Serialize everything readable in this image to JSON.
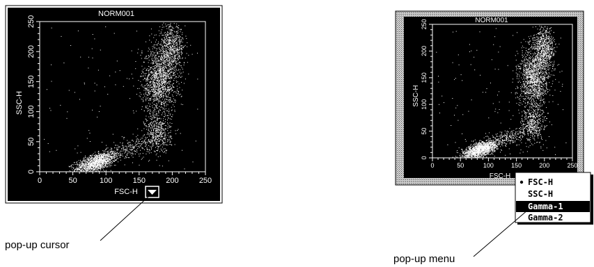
{
  "left_plot": {
    "title": "NORM001",
    "x_label": "FSC-H",
    "y_label": "SSC-H",
    "x_ticks": [
      "0",
      "50",
      "100",
      "150",
      "200",
      "250"
    ],
    "y_ticks": [
      "0",
      "50",
      "100",
      "150",
      "200",
      "250"
    ],
    "popup_icon": "triangle-down-icon"
  },
  "right_plot": {
    "title": "NORM001",
    "x_label": "FSC-H",
    "y_label": "SSC-H",
    "x_ticks": [
      "0",
      "50",
      "100",
      "150",
      "200",
      "250"
    ],
    "y_ticks": [
      "0",
      "50",
      "100",
      "150",
      "200",
      "250"
    ]
  },
  "popup_menu": {
    "items": [
      "FSC-H",
      "SSC-H",
      "Gamma-1",
      "Gamma-2"
    ],
    "checked_item": "FSC-H",
    "highlighted_item": "Gamma-1"
  },
  "callouts": {
    "popup_cursor": "pop-up cursor",
    "popup_menu": "pop-up menu"
  }
}
